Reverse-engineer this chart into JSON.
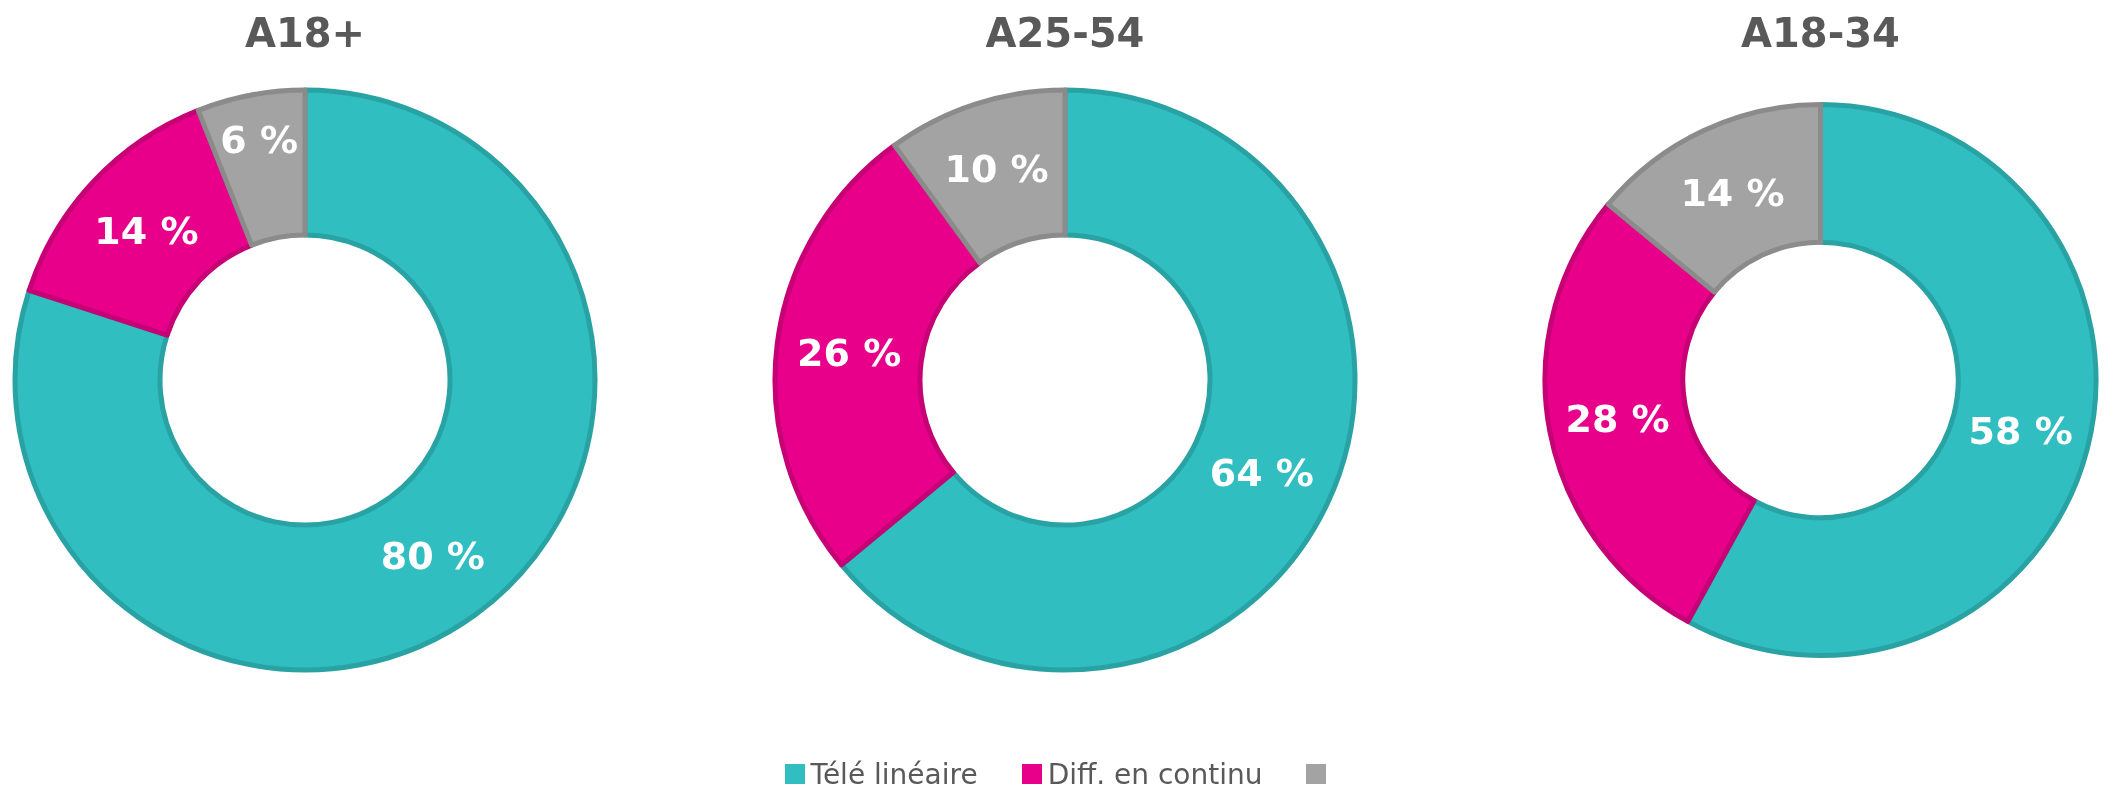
{
  "chart_data": [
    {
      "type": "donut",
      "title": "A18+",
      "categories": [
        "Télé linéaire",
        "Diff. en continu",
        null
      ],
      "values": [
        80,
        14,
        6
      ],
      "colors": [
        "#30bec1",
        "#e9008a",
        "#a3a3a3"
      ],
      "value_labels": [
        "80 %",
        "14 %",
        "6 %"
      ],
      "legend": "bottom"
    },
    {
      "type": "donut",
      "title": "A25-54",
      "categories": [
        null,
        null,
        null
      ],
      "values": [
        64,
        26,
        10
      ],
      "colors": [
        "#30bec1",
        "#e9008a",
        "#a3a3a3"
      ],
      "value_labels": [
        "64 %",
        "26 %",
        "10 %"
      ]
    },
    {
      "type": "donut",
      "title": "A18-34",
      "categories": [
        null,
        null,
        null
      ],
      "values": [
        58,
        28,
        14
      ],
      "colors": [
        "#30bec1",
        "#e9008a",
        "#a3a3a3"
      ],
      "value_labels": [
        "58 %",
        "28 %",
        "14 %"
      ]
    }
  ]
}
